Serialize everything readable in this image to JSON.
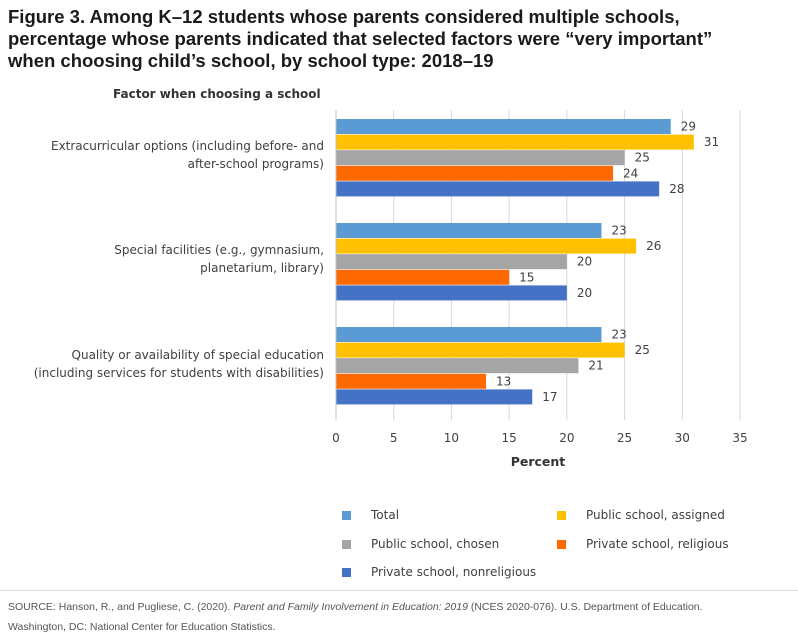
{
  "title_lines": [
    "Figure 3. Among K–12 students whose parents considered multiple schools,",
    "percentage whose parents indicated that selected factors were “very important”",
    "when choosing child’s school, by school type: 2018–19"
  ],
  "factor_header": "Factor when choosing a school",
  "category_labels": [
    [
      "Extracurricular options (including before- and",
      "after-school programs)"
    ],
    [
      "Special facilities (e.g., gymnasium,",
      "planetarium, library)"
    ],
    [
      "Quality or availability of special education",
      "(including services for students with disabilities)"
    ]
  ],
  "legend": [
    {
      "label": "Total",
      "color": "#5B9BD5"
    },
    {
      "label": "Public school, assigned",
      "color": "#FFC000"
    },
    {
      "label": "Public school, chosen",
      "color": "#A5A5A5"
    },
    {
      "label": "Private school, religious",
      "color": "#FF6A00"
    },
    {
      "label": "Private school, nonreligious",
      "color": "#4472C4"
    }
  ],
  "source": {
    "prefix": "SOURCE: Hanson, R., and Pugliese, C. (2020). ",
    "italic": "Parent and Family Involvement in Education: 2019",
    "suffix": " (NCES 2020-076). U.S. Department of Education.",
    "line2": "Washington, DC: National Center for Education Statistics."
  },
  "chart_data": {
    "type": "bar",
    "orientation": "horizontal",
    "categories": [
      "Extracurricular options (including before- and after-school programs)",
      "Special facilities (e.g., gymnasium, planetarium, library)",
      "Quality or availability of special education (including services for students with disabilities)"
    ],
    "series": [
      {
        "name": "Total",
        "color": "#5B9BD5",
        "values": [
          29,
          23,
          23
        ]
      },
      {
        "name": "Public school, assigned",
        "color": "#FFC000",
        "values": [
          31,
          26,
          25
        ]
      },
      {
        "name": "Public school, chosen",
        "color": "#A5A5A5",
        "values": [
          25,
          20,
          21
        ]
      },
      {
        "name": "Private school, religious",
        "color": "#FF6A00",
        "values": [
          24,
          15,
          13
        ]
      },
      {
        "name": "Private school, nonreligious",
        "color": "#4472C4",
        "values": [
          28,
          20,
          17
        ]
      }
    ],
    "xlabel": "Percent",
    "ylabel": "Factor when choosing a school",
    "xlim": [
      0,
      35
    ],
    "xticks": [
      0,
      5,
      10,
      15,
      20,
      25,
      30,
      35
    ],
    "grid": true,
    "legend_position": "bottom"
  }
}
